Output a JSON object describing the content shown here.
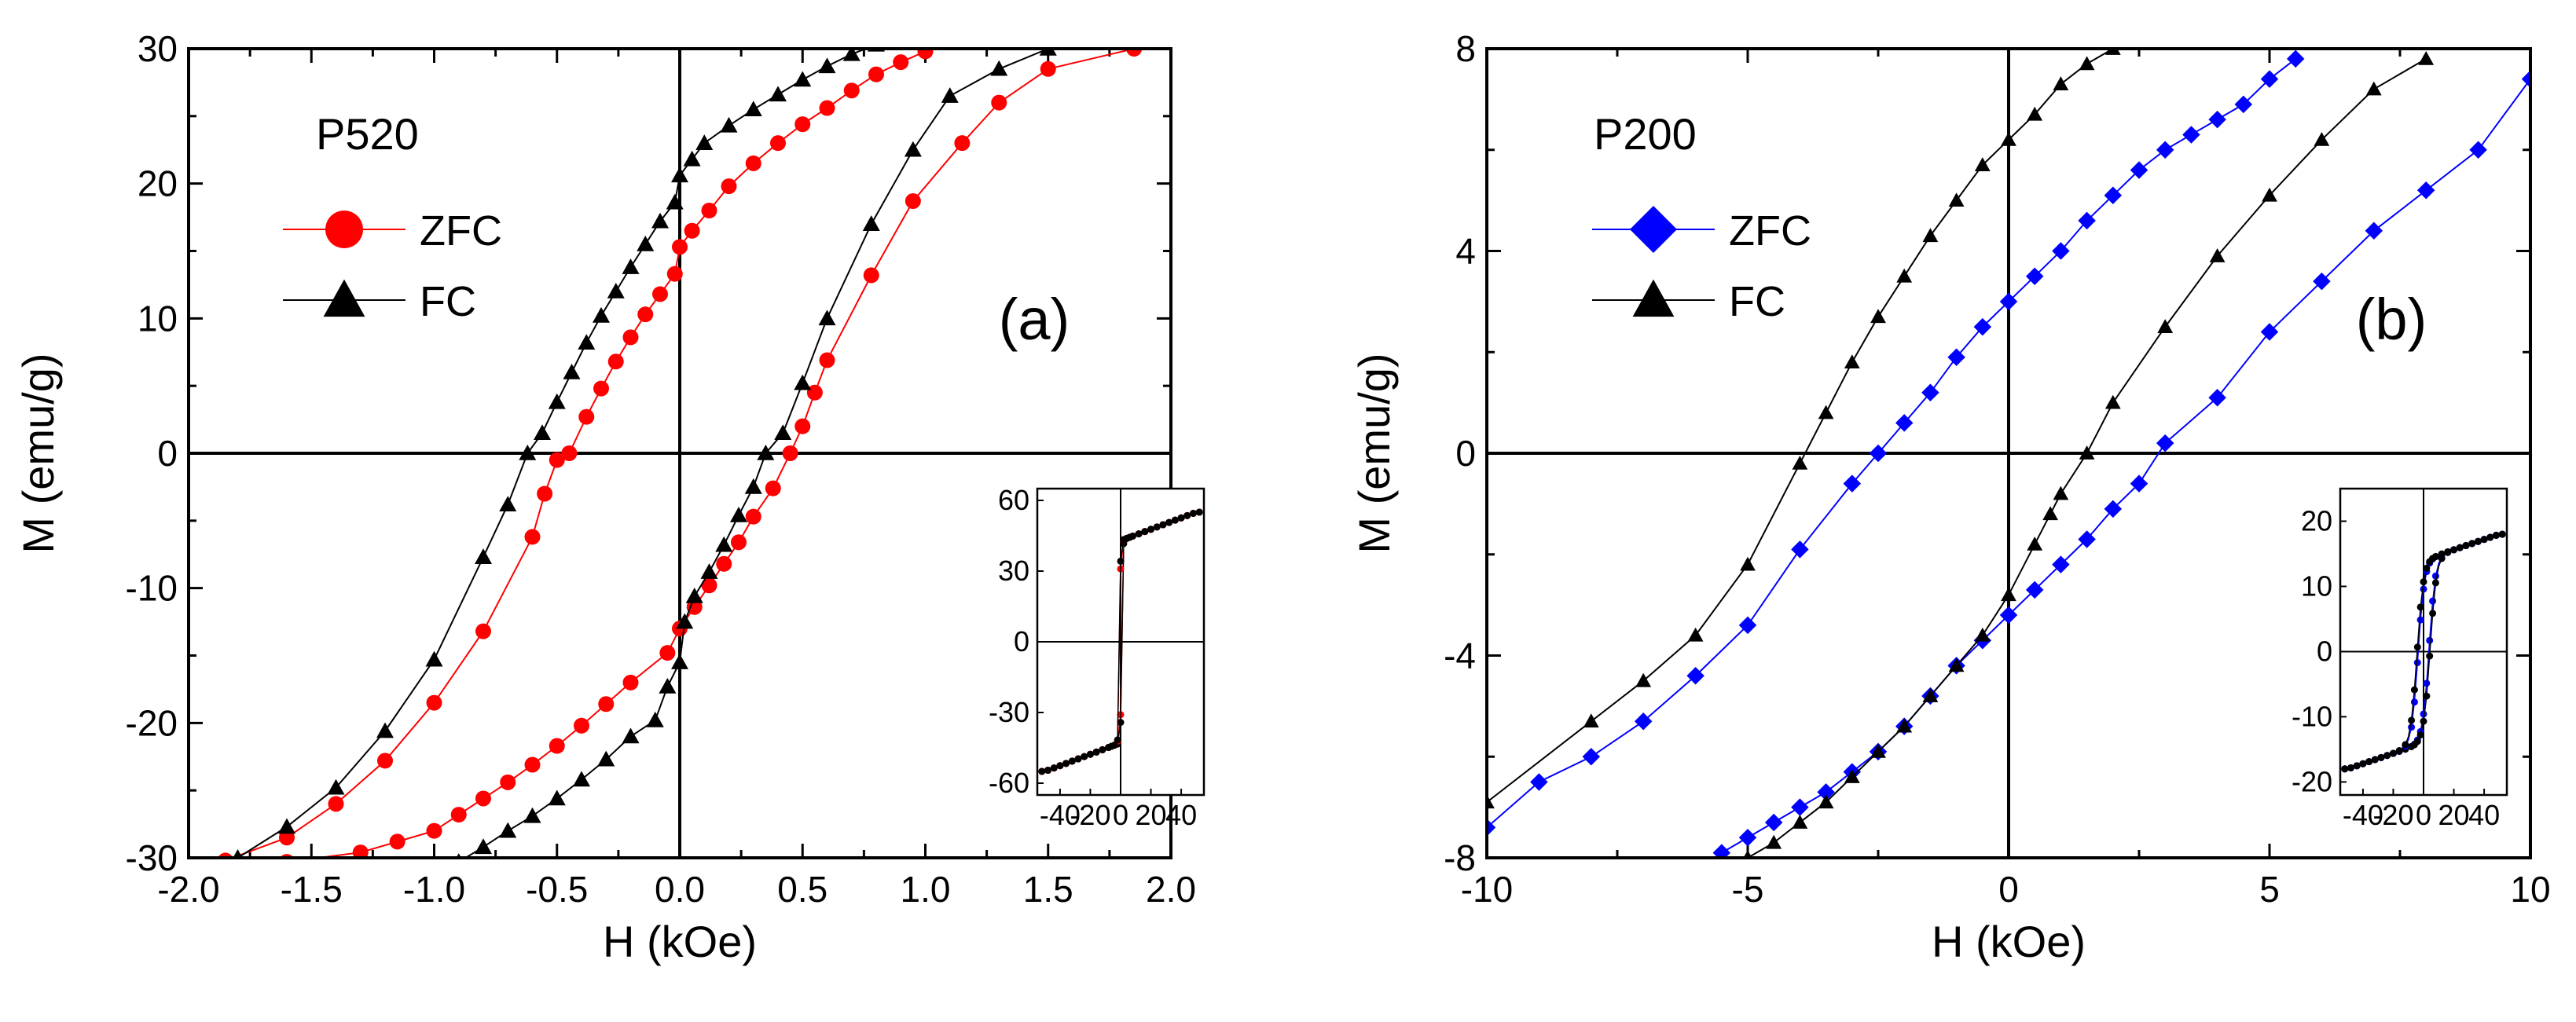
{
  "chart_data": [
    {
      "type": "line",
      "panel_label": "(a)",
      "sample_label": "P520",
      "xlabel": "H (kOe)",
      "ylabel": "M (emu/g)",
      "xlim": [
        -2.0,
        2.0
      ],
      "ylim": [
        -30,
        30
      ],
      "x_ticks": [
        "-2.0",
        "-1.5",
        "-1.0",
        "-0.5",
        "0.0",
        "0.5",
        "1.0",
        "1.5",
        "2.0"
      ],
      "y_ticks": [
        "-30",
        "-20",
        "-10",
        "0",
        "10",
        "20",
        "30"
      ],
      "legend_position": "upper-left",
      "series": [
        {
          "name": "ZFC",
          "marker": "circle",
          "color": "#ff0000",
          "descending": [
            [
              1.85,
              30
            ],
            [
              1.5,
              28.5
            ],
            [
              1.3,
              26
            ],
            [
              1.15,
              23
            ],
            [
              0.95,
              18.7
            ],
            [
              0.78,
              13.2
            ],
            [
              0.6,
              6.9
            ],
            [
              0.55,
              4.5
            ],
            [
              0.5,
              2
            ],
            [
              0.45,
              0
            ],
            [
              0.38,
              -2.6
            ],
            [
              0.3,
              -4.7
            ],
            [
              0.24,
              -6.6
            ],
            [
              0.18,
              -8.2
            ],
            [
              0.12,
              -9.8
            ],
            [
              0.06,
              -11.4
            ],
            [
              0.0,
              -13
            ],
            [
              -0.05,
              -14.8
            ],
            [
              -0.2,
              -17
            ],
            [
              -0.3,
              -18.6
            ],
            [
              -0.4,
              -20.2
            ],
            [
              -0.5,
              -21.7
            ],
            [
              -0.6,
              -23.1
            ],
            [
              -0.7,
              -24.4
            ],
            [
              -0.8,
              -25.6
            ],
            [
              -0.9,
              -26.8
            ],
            [
              -1.0,
              -28
            ],
            [
              -1.15,
              -28.8
            ],
            [
              -1.3,
              -29.6
            ],
            [
              -1.6,
              -30.3
            ]
          ],
          "ascending": [
            [
              -1.85,
              -30.2
            ],
            [
              -1.6,
              -28.5
            ],
            [
              -1.4,
              -26
            ],
            [
              -1.2,
              -22.8
            ],
            [
              -1.0,
              -18.5
            ],
            [
              -0.8,
              -13.2
            ],
            [
              -0.6,
              -6.2
            ],
            [
              -0.55,
              -3
            ],
            [
              -0.5,
              -0.5
            ],
            [
              -0.45,
              0
            ],
            [
              -0.38,
              2.7
            ],
            [
              -0.32,
              4.8
            ],
            [
              -0.26,
              6.8
            ],
            [
              -0.2,
              8.6
            ],
            [
              -0.14,
              10.3
            ],
            [
              -0.08,
              11.8
            ],
            [
              -0.02,
              13.3
            ],
            [
              0.0,
              15.3
            ],
            [
              0.05,
              16.5
            ],
            [
              0.12,
              18
            ],
            [
              0.2,
              19.8
            ],
            [
              0.3,
              21.5
            ],
            [
              0.4,
              23
            ],
            [
              0.5,
              24.4
            ],
            [
              0.6,
              25.6
            ],
            [
              0.7,
              26.9
            ],
            [
              0.8,
              28.1
            ],
            [
              0.9,
              29
            ],
            [
              1.0,
              29.8
            ]
          ]
        },
        {
          "name": "FC",
          "marker": "triangle",
          "color": "#000000",
          "descending": [
            [
              1.5,
              30
            ],
            [
              1.3,
              28.5
            ],
            [
              1.1,
              26.5
            ],
            [
              0.95,
              22.5
            ],
            [
              0.78,
              17
            ],
            [
              0.6,
              10
            ],
            [
              0.5,
              5.2
            ],
            [
              0.42,
              1.5
            ],
            [
              0.35,
              0
            ],
            [
              0.3,
              -2.5
            ],
            [
              0.24,
              -4.6
            ],
            [
              0.18,
              -6.8
            ],
            [
              0.12,
              -8.8
            ],
            [
              0.06,
              -10.6
            ],
            [
              0.02,
              -12.5
            ],
            [
              0.0,
              -15.5
            ],
            [
              -0.05,
              -17.3
            ],
            [
              -0.1,
              -19.8
            ],
            [
              -0.2,
              -21
            ],
            [
              -0.3,
              -22.7
            ],
            [
              -0.4,
              -24.2
            ],
            [
              -0.5,
              -25.6
            ],
            [
              -0.6,
              -26.9
            ],
            [
              -0.7,
              -28
            ],
            [
              -0.8,
              -29.2
            ],
            [
              -0.9,
              -30.3
            ]
          ],
          "ascending": [
            [
              -1.8,
              -30
            ],
            [
              -1.6,
              -27.7
            ],
            [
              -1.4,
              -24.8
            ],
            [
              -1.2,
              -20.6
            ],
            [
              -1.0,
              -15.3
            ],
            [
              -0.8,
              -7.7
            ],
            [
              -0.7,
              -3.8
            ],
            [
              -0.62,
              0
            ],
            [
              -0.56,
              1.5
            ],
            [
              -0.5,
              3.8
            ],
            [
              -0.44,
              6
            ],
            [
              -0.38,
              8.2
            ],
            [
              -0.32,
              10.2
            ],
            [
              -0.26,
              12
            ],
            [
              -0.2,
              13.8
            ],
            [
              -0.14,
              15.5
            ],
            [
              -0.08,
              17.2
            ],
            [
              -0.02,
              18.6
            ],
            [
              0.0,
              20.6
            ],
            [
              0.05,
              21.8
            ],
            [
              0.1,
              23
            ],
            [
              0.2,
              24.3
            ],
            [
              0.3,
              25.5
            ],
            [
              0.4,
              26.6
            ],
            [
              0.5,
              27.7
            ],
            [
              0.6,
              28.7
            ],
            [
              0.7,
              29.6
            ],
            [
              0.8,
              30.3
            ]
          ]
        }
      ],
      "inset": {
        "xlim": [
          -55,
          55
        ],
        "ylim": [
          -65,
          65
        ],
        "x_ticks": [
          "-40",
          "-20",
          "0",
          "20",
          "40"
        ],
        "y_ticks": [
          "-60",
          "-30",
          "0",
          "30",
          "60"
        ]
      }
    },
    {
      "type": "line",
      "panel_label": "(b)",
      "sample_label": "P200",
      "xlabel": "H (kOe)",
      "ylabel": "M (emu/g)",
      "xlim": [
        -10,
        10
      ],
      "ylim": [
        -8,
        8
      ],
      "x_ticks": [
        "-10",
        "-5",
        "0",
        "5",
        "10"
      ],
      "y_ticks": [
        "-8",
        "-4",
        "0",
        "4",
        "8"
      ],
      "legend_position": "upper-left",
      "series": [
        {
          "name": "ZFC",
          "marker": "diamond",
          "color": "#0000ff",
          "descending": [
            [
              10,
              7.4
            ],
            [
              9,
              6
            ],
            [
              8,
              5.2
            ],
            [
              7,
              4.4
            ],
            [
              6,
              3.4
            ],
            [
              5,
              2.4
            ],
            [
              4,
              1.1
            ],
            [
              3,
              0.2
            ],
            [
              2.5,
              -0.6
            ],
            [
              2.0,
              -1.1
            ],
            [
              1.5,
              -1.7
            ],
            [
              1.0,
              -2.2
            ],
            [
              0.5,
              -2.7
            ],
            [
              0.0,
              -3.2
            ],
            [
              -0.5,
              -3.7
            ],
            [
              -1.0,
              -4.2
            ],
            [
              -1.5,
              -4.8
            ],
            [
              -2.0,
              -5.4
            ],
            [
              -2.5,
              -5.9
            ],
            [
              -3.0,
              -6.3
            ],
            [
              -3.5,
              -6.7
            ],
            [
              -4.0,
              -7.0
            ],
            [
              -4.5,
              -7.3
            ],
            [
              -5.0,
              -7.6
            ],
            [
              -5.5,
              -7.9
            ]
          ],
          "ascending": [
            [
              -10,
              -7.4
            ],
            [
              -9,
              -6.5
            ],
            [
              -8,
              -6.0
            ],
            [
              -7,
              -5.3
            ],
            [
              -6,
              -4.4
            ],
            [
              -5,
              -3.4
            ],
            [
              -4,
              -1.9
            ],
            [
              -3,
              -0.6
            ],
            [
              -2.5,
              0
            ],
            [
              -2.0,
              0.6
            ],
            [
              -1.5,
              1.2
            ],
            [
              -1.0,
              1.9
            ],
            [
              -0.5,
              2.5
            ],
            [
              0.0,
              3.0
            ],
            [
              0.5,
              3.5
            ],
            [
              1.0,
              4.0
            ],
            [
              1.5,
              4.6
            ],
            [
              2.0,
              5.1
            ],
            [
              2.5,
              5.6
            ],
            [
              3.0,
              6.0
            ],
            [
              3.5,
              6.3
            ],
            [
              4.0,
              6.6
            ],
            [
              4.5,
              6.9
            ],
            [
              5.0,
              7.4
            ],
            [
              5.5,
              7.8
            ]
          ]
        },
        {
          "name": "FC",
          "marker": "triangle",
          "color": "#000000",
          "descending": [
            [
              8,
              7.8
            ],
            [
              7,
              7.2
            ],
            [
              6,
              6.2
            ],
            [
              5,
              5.1
            ],
            [
              4,
              3.9
            ],
            [
              3,
              2.5
            ],
            [
              2,
              1.0
            ],
            [
              1.5,
              0
            ],
            [
              1.0,
              -0.8
            ],
            [
              0.8,
              -1.2
            ],
            [
              0.5,
              -1.8
            ],
            [
              0.0,
              -2.8
            ],
            [
              -0.5,
              -3.6
            ],
            [
              -1.0,
              -4.2
            ],
            [
              -1.5,
              -4.8
            ],
            [
              -2.0,
              -5.4
            ],
            [
              -2.5,
              -5.9
            ],
            [
              -3.0,
              -6.4
            ],
            [
              -3.5,
              -6.9
            ],
            [
              -4.0,
              -7.3
            ],
            [
              -4.5,
              -7.7
            ],
            [
              -5.0,
              -8.0
            ]
          ],
          "ascending": [
            [
              -10,
              -6.9
            ],
            [
              -8,
              -5.3
            ],
            [
              -7,
              -4.5
            ],
            [
              -6,
              -3.6
            ],
            [
              -5,
              -2.2
            ],
            [
              -4,
              -0.2
            ],
            [
              -3.5,
              0.8
            ],
            [
              -3,
              1.8
            ],
            [
              -2.5,
              2.7
            ],
            [
              -2.0,
              3.5
            ],
            [
              -1.5,
              4.3
            ],
            [
              -1.0,
              5.0
            ],
            [
              -0.5,
              5.7
            ],
            [
              0.0,
              6.2
            ],
            [
              0.5,
              6.7
            ],
            [
              1.0,
              7.3
            ],
            [
              1.5,
              7.7
            ],
            [
              2.0,
              8.0
            ]
          ]
        }
      ],
      "inset": {
        "xlim": [
          -55,
          55
        ],
        "ylim": [
          -22,
          25
        ],
        "x_ticks": [
          "-40",
          "-20",
          "0",
          "20",
          "40"
        ],
        "y_ticks": [
          "-20",
          "-10",
          "0",
          "10",
          "20"
        ]
      }
    }
  ]
}
